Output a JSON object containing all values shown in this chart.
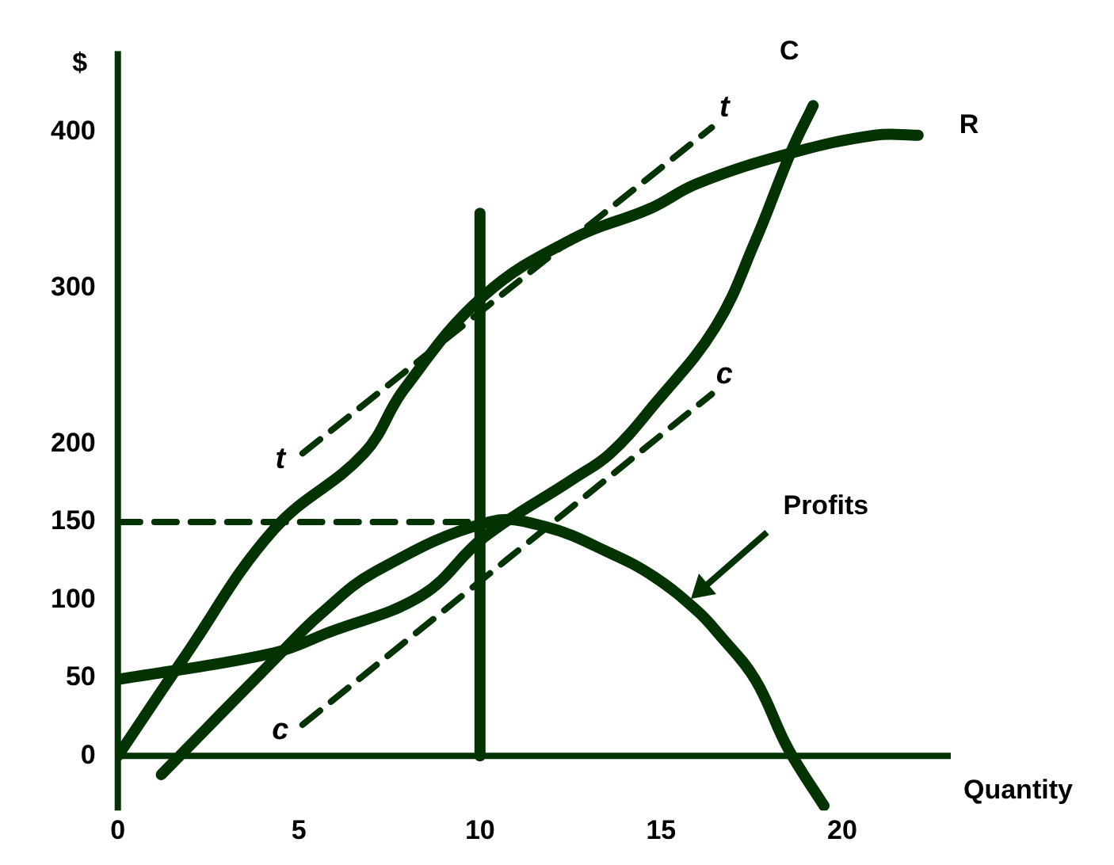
{
  "chart_data": {
    "type": "line",
    "xlabel": "Quantity",
    "ylabel": "$",
    "xlim": [
      0,
      23
    ],
    "ylim": [
      -35,
      452
    ],
    "xticks": [
      0,
      5,
      10,
      15,
      20
    ],
    "yticks": [
      0,
      50,
      100,
      150,
      200,
      300,
      400
    ],
    "grid": false,
    "legend": false,
    "marker": "none",
    "series": [
      {
        "name": "R",
        "color": "#033203",
        "x": [
          0,
          1.8,
          4.3,
          6.8,
          7.9,
          10.1,
          12.6,
          14.7,
          16,
          18.5,
          20.9,
          22.1
        ],
        "values": [
          0,
          62,
          145,
          194,
          235,
          295,
          332,
          351,
          367,
          386,
          398,
          398
        ]
      },
      {
        "name": "C",
        "color": "#033203",
        "x": [
          0,
          4.3,
          5.8,
          8.4,
          10.1,
          12.6,
          13.6,
          14.8,
          16.5,
          17.6,
          18.6,
          19.2
        ],
        "values": [
          49,
          66,
          79,
          103,
          140,
          178,
          194,
          225,
          275,
          330,
          388,
          417
        ]
      },
      {
        "color": "#033203",
        "x": [
          1.2,
          4.5,
          5.6,
          7.1,
          10.25,
          11.8,
          13.6,
          14.8,
          16,
          16.6,
          17.6,
          18.5,
          19.5
        ],
        "values": [
          -12,
          66,
          91,
          118,
          150,
          147,
          130,
          115,
          93,
          78,
          49,
          5,
          -32
        ]
      },
      {
        "color": "#033203",
        "line_style": "dashed",
        "x": [
          5.1,
          16.4
        ],
        "values": [
          194,
          403
        ]
      },
      {
        "color": "#033203",
        "line_style": "dashed",
        "x": [
          5.1,
          16.4
        ],
        "values": [
          20,
          232
        ]
      },
      {
        "color": "#033203",
        "line_style": "dashed",
        "x": [
          0,
          10
        ],
        "values": [
          150,
          150
        ]
      },
      {
        "color": "#033203",
        "x": [
          10,
          10
        ],
        "values": [
          0,
          348
        ]
      }
    ],
    "annotations": [
      "t",
      "t",
      "c",
      "c",
      "Profits"
    ]
  }
}
